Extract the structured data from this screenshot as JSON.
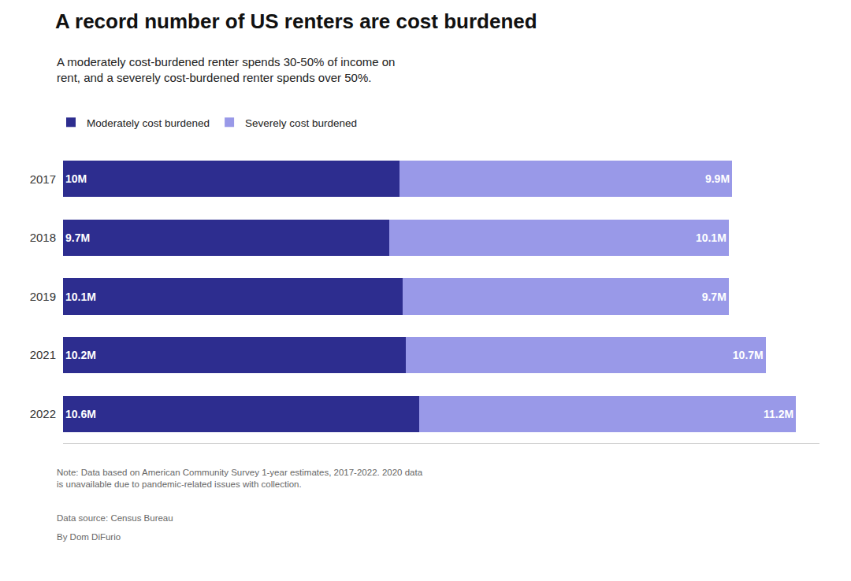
{
  "chart_data": {
    "type": "bar",
    "orientation": "horizontal",
    "stacked": true,
    "title": "A record number of US renters are cost burdened",
    "subtitle": "A moderately cost-burdened renter spends 30-50% of income on\nrent, and a severely cost-burdened renter spends over 50%.",
    "annotations": [
      "Note: Data based on American Community Survey 1-year estimates, 2017-2022. 2020 data\nis unavailable due to pandemic-related issues with collection.",
      "Data source: Census Bureau",
      "By Dom DiFurio"
    ],
    "categories": [
      "2017",
      "2018",
      "2019",
      "2021",
      "2022"
    ],
    "series": [
      {
        "name": "Moderately cost burdened",
        "color": "#2d2d8f",
        "values": [
          10.0,
          9.7,
          10.1,
          10.2,
          10.6
        ],
        "value_labels": [
          "10M",
          "9.7M",
          "10.1M",
          "10.2M",
          "10.6M"
        ]
      },
      {
        "name": "Severely cost burdened",
        "color": "#9999e8",
        "values": [
          9.9,
          10.1,
          9.7,
          10.7,
          11.2
        ],
        "value_labels": [
          "9.9M",
          "10.1M",
          "9.7M",
          "10.7M",
          "11.2M"
        ]
      }
    ],
    "xlim": [
      0,
      22.5
    ],
    "tick_labels": "y",
    "data_labels": true,
    "legend": "upper left",
    "grid": false
  }
}
